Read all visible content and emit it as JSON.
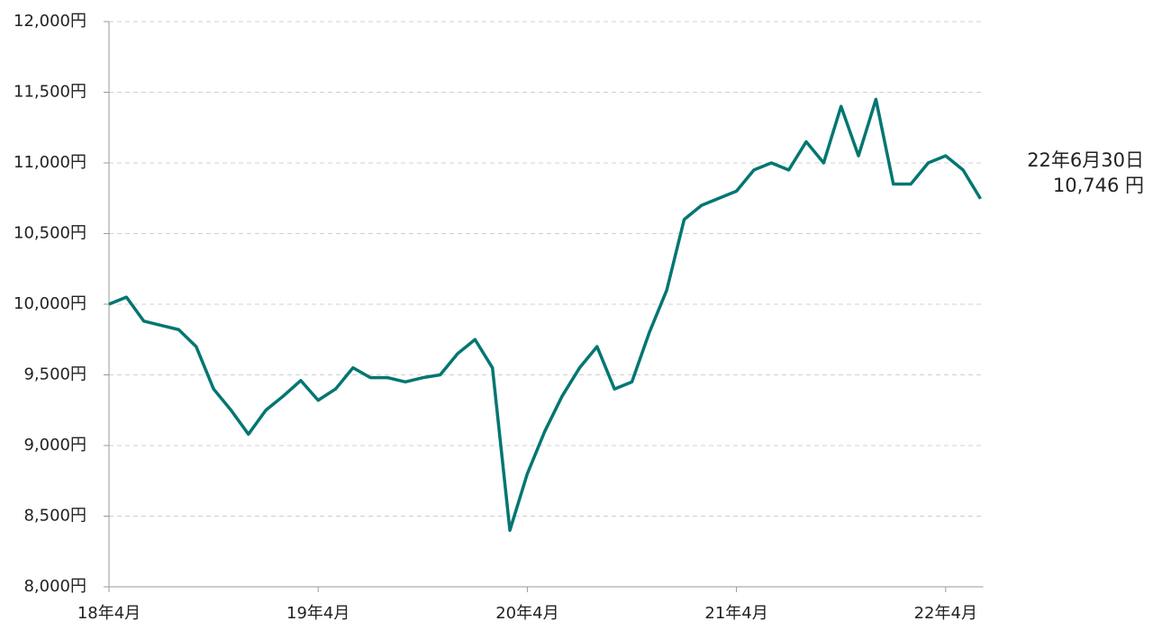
{
  "chart_data": {
    "type": "line",
    "categories": [
      "18年4月",
      null,
      null,
      null,
      null,
      null,
      null,
      null,
      null,
      null,
      null,
      null,
      "19年4月",
      null,
      null,
      null,
      null,
      null,
      null,
      null,
      null,
      null,
      null,
      null,
      "20年4月",
      null,
      null,
      null,
      null,
      null,
      null,
      null,
      null,
      null,
      null,
      null,
      "21年4月",
      null,
      null,
      null,
      null,
      null,
      null,
      null,
      null,
      null,
      null,
      null,
      "22年4月",
      null,
      "22年6月30日"
    ],
    "series": [
      {
        "color": "#007672",
        "values": [
          10000,
          10050,
          9880,
          9850,
          9820,
          9700,
          9400,
          9250,
          9080,
          9250,
          9350,
          9460,
          9320,
          9400,
          9550,
          9480,
          9480,
          9450,
          9480,
          9500,
          9650,
          9750,
          9550,
          8400,
          8800,
          9100,
          9350,
          9550,
          9700,
          9400,
          9450,
          9800,
          10100,
          10600,
          10700,
          10750,
          10800,
          10950,
          11000,
          10950,
          11150,
          11000,
          11400,
          11050,
          11450,
          10850,
          10850,
          11000,
          11050,
          10950,
          10746
        ],
        "value_labels": [
          null,
          null,
          null,
          null,
          null,
          null,
          null,
          null,
          null,
          null,
          null,
          null,
          null,
          null,
          null,
          null,
          null,
          null,
          null,
          null,
          null,
          null,
          null,
          null,
          null,
          null,
          null,
          null,
          null,
          null,
          null,
          null,
          null,
          null,
          null,
          null,
          null,
          null,
          null,
          null,
          null,
          null,
          null,
          null,
          null,
          null,
          null,
          null,
          null,
          null,
          "10,746 円"
        ]
      }
    ],
    "ylim": [
      8000,
      12000
    ],
    "yticks": [
      {
        "value": 8000,
        "label": "8,000円"
      },
      {
        "value": 8500,
        "label": "8,500円"
      },
      {
        "value": 9000,
        "label": "9,000円"
      },
      {
        "value": 9500,
        "label": "9,500円"
      },
      {
        "value": 10000,
        "label": "10,000円"
      },
      {
        "value": 10500,
        "label": "10,500円"
      },
      {
        "value": 11000,
        "label": "11,000円"
      },
      {
        "value": 11500,
        "label": "11,500円"
      },
      {
        "value": 12000,
        "label": "12,000円"
      }
    ],
    "grid": true
  }
}
